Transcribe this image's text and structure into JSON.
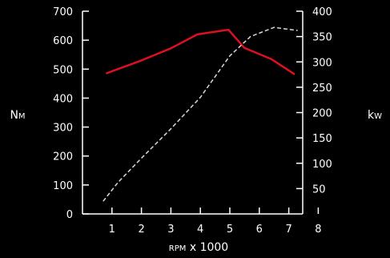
{
  "chart_data": {
    "type": "line",
    "xlabel": {
      "small_caps": "rpm",
      "rest": " x 1000"
    },
    "ylabel_left": {
      "first": "N",
      "small_caps": "m"
    },
    "ylabel_right": {
      "first": "k",
      "small_caps": "W"
    },
    "xlim": [
      0,
      8
    ],
    "x_ticks": [
      1,
      2,
      3,
      4,
      5,
      6,
      7,
      8
    ],
    "ylim_left": [
      0,
      700
    ],
    "y_ticks_left": [
      0,
      100,
      200,
      300,
      400,
      500,
      600,
      700
    ],
    "ylim_right": [
      0,
      400
    ],
    "y_ticks_right": [
      50,
      100,
      150,
      200,
      250,
      300,
      350,
      400
    ],
    "grid": false,
    "series": [
      {
        "axis": "left",
        "style": "solid",
        "color": "#dd1020",
        "points": [
          [
            0.8,
            485
          ],
          [
            2.0,
            530
          ],
          [
            3.0,
            572
          ],
          [
            3.9,
            620
          ],
          [
            4.95,
            636
          ],
          [
            5.5,
            573
          ],
          [
            6.4,
            535
          ],
          [
            7.2,
            482
          ]
        ]
      },
      {
        "axis": "right",
        "style": "dashed",
        "color": "#d8d8d8",
        "points": [
          [
            0.7,
            25
          ],
          [
            1.2,
            62
          ],
          [
            2.0,
            110
          ],
          [
            3.0,
            168
          ],
          [
            4.0,
            230
          ],
          [
            5.0,
            312
          ],
          [
            5.7,
            350
          ],
          [
            6.5,
            368
          ],
          [
            7.3,
            362
          ]
        ]
      }
    ]
  }
}
